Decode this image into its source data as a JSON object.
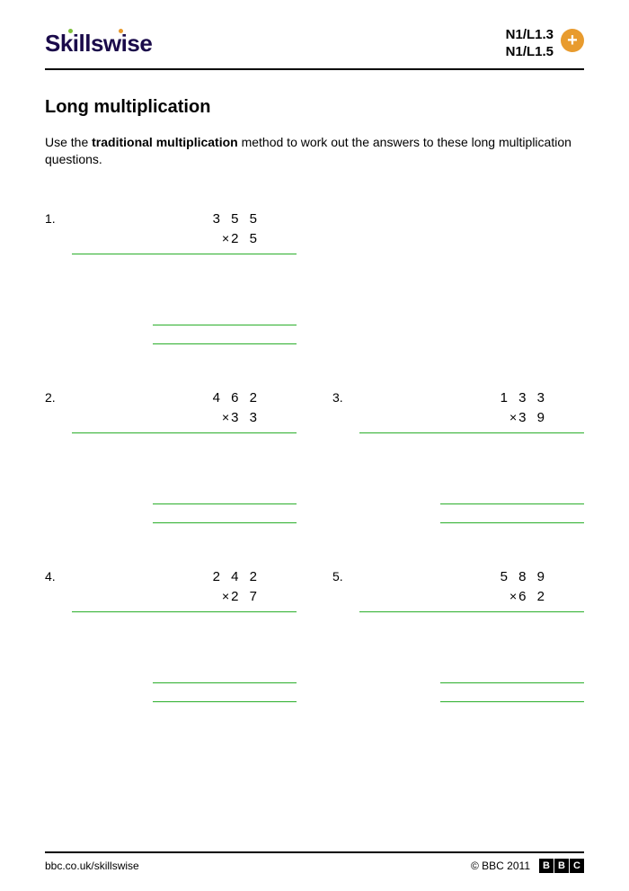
{
  "header": {
    "logo_text": "Skillswise",
    "level_line1": "N1/L1.3",
    "level_line2": "N1/L1.5",
    "badge_symbol": "+"
  },
  "title": "Long multiplication",
  "instructions": {
    "pre": "Use the ",
    "bold": "traditional multiplication",
    "post": " method to work out the answers to these long multiplication questions."
  },
  "colors": {
    "line_green": "#2BAF2B",
    "badge_orange": "#E89B2E",
    "logo_navy": "#1a0a4a",
    "dot_green": "#7DBF3A"
  },
  "problems": [
    [
      {
        "num": "1.",
        "top": "3 5 5",
        "bottom": "2 5"
      },
      null
    ],
    [
      {
        "num": "2.",
        "top": "4 6 2",
        "bottom": "3 3"
      },
      {
        "num": "3.",
        "top": "1 3 3",
        "bottom": "3 9"
      }
    ],
    [
      {
        "num": "4.",
        "top": "2 4 2",
        "bottom": "2 7"
      },
      {
        "num": "5.",
        "top": "5 8 9",
        "bottom": "6 2"
      }
    ]
  ],
  "footer": {
    "url": "bbc.co.uk/skillswise",
    "copyright": "© BBC 2011",
    "bbc": [
      "B",
      "B",
      "C"
    ]
  }
}
